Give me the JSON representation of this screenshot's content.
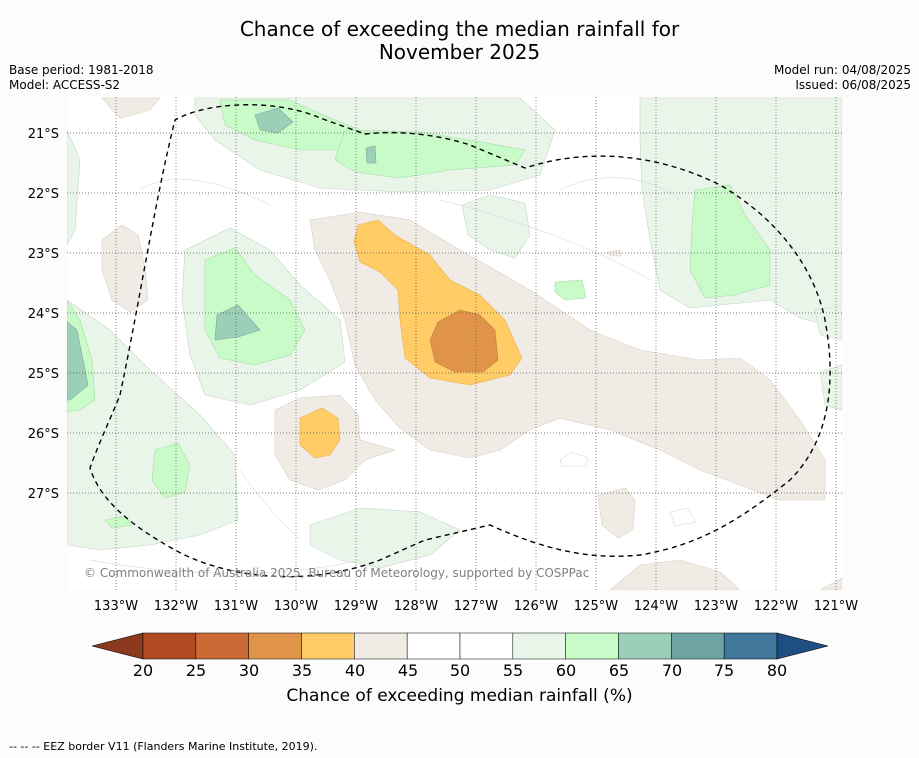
{
  "title": {
    "line1": "Chance of exceeding the median rainfall for",
    "line2": "November 2025"
  },
  "meta": {
    "base_period": "Base period: 1981-2018",
    "model": "Model: ACCESS-S2",
    "model_run": "Model run: 04/08/2025",
    "issued": "Issued: 06/08/2025"
  },
  "copyright": "© Commonwealth of Australia 2025, Bureau of Meteorology, supported by COSPPac",
  "latitude_labels": [
    "21°S",
    "22°S",
    "23°S",
    "24°S",
    "25°S",
    "26°S",
    "27°S"
  ],
  "longitude_labels": [
    "133°W",
    "132°W",
    "131°W",
    "130°W",
    "129°W",
    "128°W",
    "127°W",
    "126°W",
    "125°W",
    "124°W",
    "123°W",
    "122°W",
    "121°W"
  ],
  "colorbar": {
    "ticks": [
      "20",
      "25",
      "30",
      "35",
      "40",
      "45",
      "50",
      "55",
      "60",
      "65",
      "70",
      "75",
      "80"
    ],
    "colors": [
      "#b04a25",
      "#cc6a35",
      "#e0944a",
      "#ffcc66",
      "#f0ece5",
      "#ffffff",
      "#ffffff",
      "#eaf5ea",
      "#c9fbc9",
      "#9ccfb8",
      "#6da3a3",
      "#40779b"
    ],
    "under_color": "#8c3a1e",
    "over_color": "#1f4e82",
    "label": "Chance of exceeding median rainfall (%)"
  },
  "footer_note": "--  --  -- EEZ border V11 (Flanders Marine Institute, 2019)."
}
